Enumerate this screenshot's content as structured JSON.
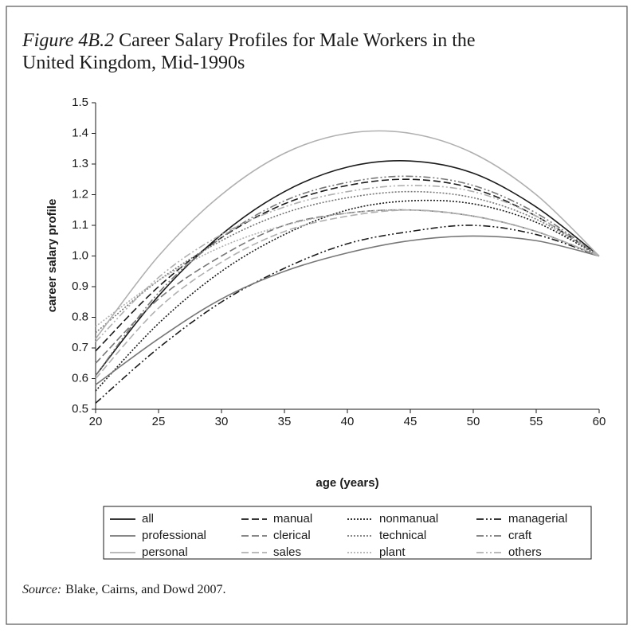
{
  "chart_data": {
    "type": "line",
    "figure_label": "Figure 4B.2",
    "title": "Career Salary Profiles for Male Workers in the United Kingdom, Mid-1990s",
    "xlabel": "age (years)",
    "ylabel": "career salary profile",
    "source_label": "Source:",
    "source": "Blake, Cairns, and Dowd 2007.",
    "x": [
      20,
      25,
      30,
      35,
      40,
      45,
      50,
      55,
      60
    ],
    "xlim": [
      20,
      60
    ],
    "xticks": [
      20,
      25,
      30,
      35,
      40,
      45,
      50,
      55,
      60
    ],
    "ylim": [
      0.5,
      1.5
    ],
    "yticks": [
      0.5,
      0.6,
      0.7,
      0.8,
      0.9,
      {
        "value": 1,
        "label": "1.0"
      },
      1.1,
      1.2,
      1.3,
      1.4,
      1.5
    ],
    "grid": false,
    "series": [
      {
        "name": "all",
        "color": "#1a1a1a",
        "dash": "none",
        "values": [
          0.61,
          0.87,
          1.07,
          1.21,
          1.29,
          1.31,
          1.27,
          1.16,
          1.0
        ]
      },
      {
        "name": "manual",
        "color": "#1a1a1a",
        "dash": "9,4",
        "values": [
          0.69,
          0.9,
          1.06,
          1.17,
          1.23,
          1.25,
          1.22,
          1.13,
          1.0
        ]
      },
      {
        "name": "nonmanual",
        "color": "#1a1a1a",
        "dash": "2,2",
        "values": [
          0.56,
          0.78,
          0.95,
          1.07,
          1.15,
          1.18,
          1.17,
          1.11,
          1.0
        ]
      },
      {
        "name": "managerial",
        "color": "#1a1a1a",
        "dash": "9,3,2,3,2,3",
        "values": [
          0.52,
          0.7,
          0.85,
          0.96,
          1.04,
          1.08,
          1.1,
          1.07,
          1.0
        ]
      },
      {
        "name": "professional",
        "color": "#777777",
        "dash": "none",
        "values": [
          0.58,
          0.73,
          0.86,
          0.95,
          1.01,
          1.05,
          1.065,
          1.05,
          1.0
        ]
      },
      {
        "name": "clerical",
        "color": "#777777",
        "dash": "9,4",
        "values": [
          0.65,
          0.86,
          1.0,
          1.1,
          1.14,
          1.15,
          1.13,
          1.08,
          1.0
        ]
      },
      {
        "name": "technical",
        "color": "#777777",
        "dash": "2,2",
        "values": [
          0.75,
          0.92,
          1.05,
          1.14,
          1.19,
          1.21,
          1.19,
          1.12,
          1.0
        ]
      },
      {
        "name": "craft",
        "color": "#777777",
        "dash": "9,3,2,3,2,3",
        "values": [
          0.61,
          0.88,
          1.06,
          1.18,
          1.24,
          1.26,
          1.23,
          1.14,
          1.0
        ]
      },
      {
        "name": "personal",
        "color": "#b0b0b0",
        "dash": "none",
        "values": [
          0.73,
          1.0,
          1.2,
          1.335,
          1.4,
          1.4,
          1.335,
          1.2,
          1.0
        ]
      },
      {
        "name": "sales",
        "color": "#b0b0b0",
        "dash": "9,4",
        "values": [
          0.6,
          0.83,
          0.98,
          1.08,
          1.13,
          1.15,
          1.13,
          1.08,
          1.0
        ]
      },
      {
        "name": "plant",
        "color": "#b0b0b0",
        "dash": "2,2",
        "values": [
          0.77,
          0.92,
          1.03,
          1.1,
          1.14,
          1.15,
          1.13,
          1.08,
          1.0
        ]
      },
      {
        "name": "others",
        "color": "#b0b0b0",
        "dash": "9,3,2,3,2,3",
        "values": [
          0.72,
          0.93,
          1.07,
          1.16,
          1.21,
          1.23,
          1.21,
          1.13,
          1.0
        ]
      }
    ]
  }
}
